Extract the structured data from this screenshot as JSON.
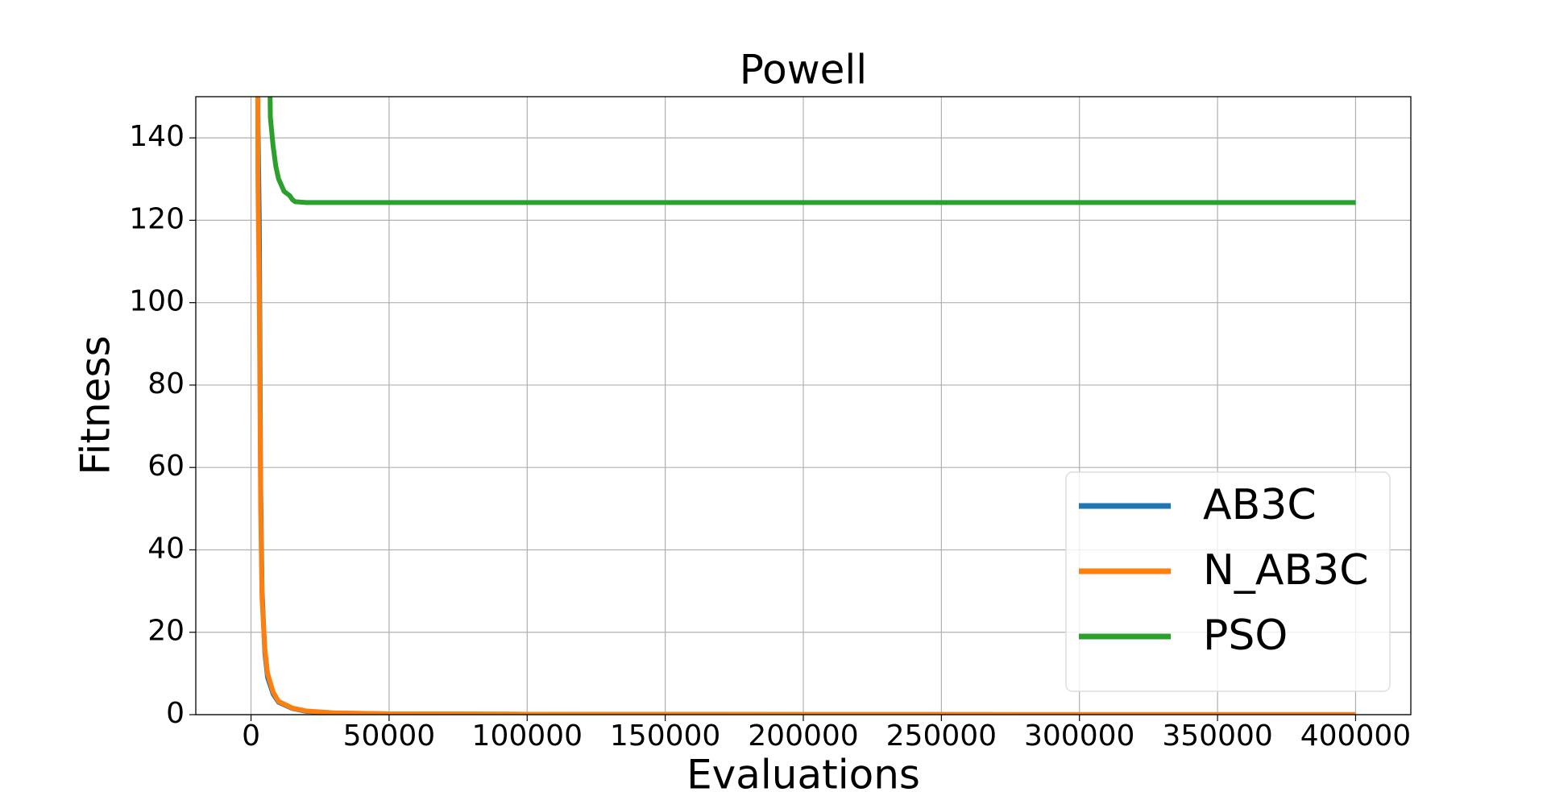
{
  "chart_data": {
    "type": "line",
    "title": "Powell",
    "x_label": "Evaluations",
    "y_label": "Fitness",
    "xlim": [
      -20000,
      420000
    ],
    "xticks": [
      0,
      50000,
      100000,
      150000,
      200000,
      250000,
      300000,
      350000,
      400000
    ],
    "ylim": [
      0,
      150
    ],
    "yticks": [
      0,
      20,
      40,
      60,
      80,
      100,
      120,
      140
    ],
    "grid": true,
    "legend": "lower right",
    "series": [
      {
        "name": "AB3C",
        "color": "#1f77b4",
        "x": [
          2000,
          2500,
          3000,
          3500,
          4000,
          5000,
          6000,
          8000,
          10000,
          15000,
          20000,
          30000,
          50000,
          100000,
          200000,
          300000,
          400000
        ],
        "values": [
          300,
          145,
          120,
          55,
          30,
          15,
          9,
          5,
          3,
          1.5,
          0.8,
          0.4,
          0.2,
          0.1,
          0.05,
          0.03,
          0.02
        ]
      },
      {
        "name": "N_AB3C",
        "color": "#ff7f0e",
        "x": [
          2000,
          2500,
          3000,
          3500,
          4000,
          5000,
          6000,
          8000,
          10000,
          15000,
          20000,
          30000,
          50000,
          100000,
          200000,
          300000,
          400000
        ],
        "values": [
          300,
          130,
          100,
          50,
          28,
          16,
          10,
          5.5,
          3.2,
          1.6,
          0.9,
          0.45,
          0.2,
          0.1,
          0.05,
          0.03,
          0.02
        ]
      },
      {
        "name": "PSO",
        "color": "#2ca02c",
        "x": [
          6000,
          7000,
          8000,
          9000,
          10000,
          12000,
          14000,
          15000,
          16000,
          20000,
          50000,
          100000,
          200000,
          300000,
          400000
        ],
        "values": [
          200,
          145,
          138,
          133,
          130,
          127,
          126,
          125,
          124.5,
          124.3,
          124.3,
          124.3,
          124.3,
          124.3,
          124.3
        ]
      }
    ]
  }
}
